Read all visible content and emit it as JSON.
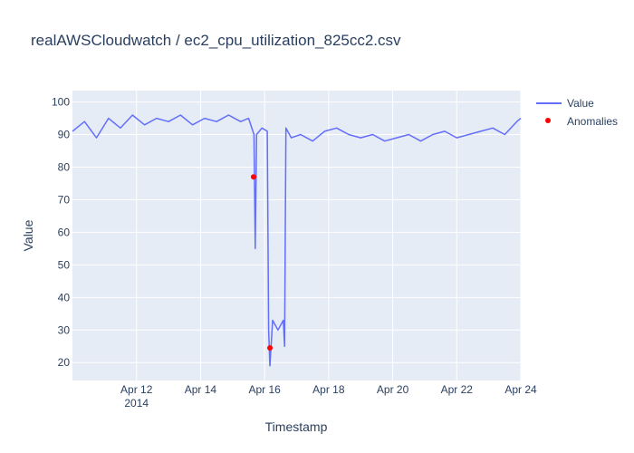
{
  "chart_data": {
    "type": "line",
    "title": "realAWSCloudwatch / ec2_cpu_utilization_825cc2.csv",
    "xlabel": "Timestamp",
    "ylabel": "Value",
    "xlim": [
      "2014-04-10",
      "2014-04-24"
    ],
    "ylim": [
      14.5,
      103.5
    ],
    "x_ticks": [
      {
        "date": "2014-04-12",
        "label": "Apr 12",
        "sublabel": "2014"
      },
      {
        "date": "2014-04-14",
        "label": "Apr 14",
        "sublabel": ""
      },
      {
        "date": "2014-04-16",
        "label": "Apr 16",
        "sublabel": ""
      },
      {
        "date": "2014-04-18",
        "label": "Apr 18",
        "sublabel": ""
      },
      {
        "date": "2014-04-20",
        "label": "Apr 20",
        "sublabel": ""
      },
      {
        "date": "2014-04-22",
        "label": "Apr 22",
        "sublabel": ""
      },
      {
        "date": "2014-04-24",
        "label": "Apr 24",
        "sublabel": ""
      }
    ],
    "y_ticks": [
      20,
      30,
      40,
      50,
      60,
      70,
      80,
      90,
      100
    ],
    "grid": true,
    "legend": {
      "position": "top-right outside"
    },
    "series": [
      {
        "name": "Value",
        "type": "line",
        "color": "#636efa",
        "points": [
          [
            "2014-04-10 00:00",
            91
          ],
          [
            "2014-04-10 09:00",
            94
          ],
          [
            "2014-04-10 18:00",
            89
          ],
          [
            "2014-04-11 03:00",
            95
          ],
          [
            "2014-04-11 12:00",
            92
          ],
          [
            "2014-04-11 21:00",
            96
          ],
          [
            "2014-04-12 06:00",
            93
          ],
          [
            "2014-04-12 15:00",
            95
          ],
          [
            "2014-04-13 00:00",
            94
          ],
          [
            "2014-04-13 09:00",
            96
          ],
          [
            "2014-04-13 18:00",
            93
          ],
          [
            "2014-04-14 03:00",
            95
          ],
          [
            "2014-04-14 12:00",
            94
          ],
          [
            "2014-04-14 21:00",
            96
          ],
          [
            "2014-04-15 06:00",
            94
          ],
          [
            "2014-04-15 12:00",
            95
          ],
          [
            "2014-04-15 16:00",
            90
          ],
          [
            "2014-04-15 17:00",
            55
          ],
          [
            "2014-04-15 18:00",
            90
          ],
          [
            "2014-04-15 22:00",
            92
          ],
          [
            "2014-04-16 02:00",
            91
          ],
          [
            "2014-04-16 03:00",
            30
          ],
          [
            "2014-04-16 04:00",
            19
          ],
          [
            "2014-04-16 06:00",
            33
          ],
          [
            "2014-04-16 10:00",
            30
          ],
          [
            "2014-04-16 14:00",
            33
          ],
          [
            "2014-04-16 15:00",
            25
          ],
          [
            "2014-04-16 16:00",
            92
          ],
          [
            "2014-04-16 20:00",
            89
          ],
          [
            "2014-04-17 03:00",
            90
          ],
          [
            "2014-04-17 12:00",
            88
          ],
          [
            "2014-04-17 21:00",
            91
          ],
          [
            "2014-04-18 06:00",
            92
          ],
          [
            "2014-04-18 15:00",
            90
          ],
          [
            "2014-04-19 00:00",
            89
          ],
          [
            "2014-04-19 09:00",
            90
          ],
          [
            "2014-04-19 18:00",
            88
          ],
          [
            "2014-04-20 03:00",
            89
          ],
          [
            "2014-04-20 12:00",
            90
          ],
          [
            "2014-04-20 21:00",
            88
          ],
          [
            "2014-04-21 06:00",
            90
          ],
          [
            "2014-04-21 15:00",
            91
          ],
          [
            "2014-04-22 00:00",
            89
          ],
          [
            "2014-04-22 09:00",
            90
          ],
          [
            "2014-04-22 18:00",
            91
          ],
          [
            "2014-04-23 03:00",
            92
          ],
          [
            "2014-04-23 12:00",
            90
          ],
          [
            "2014-04-23 21:00",
            94
          ],
          [
            "2014-04-24 00:00",
            95
          ]
        ]
      },
      {
        "name": "Anomalies",
        "type": "scatter",
        "color": "#ff0000",
        "points": [
          [
            "2014-04-15 15:45",
            77
          ],
          [
            "2014-04-16 04:00",
            24.5
          ]
        ]
      }
    ]
  }
}
